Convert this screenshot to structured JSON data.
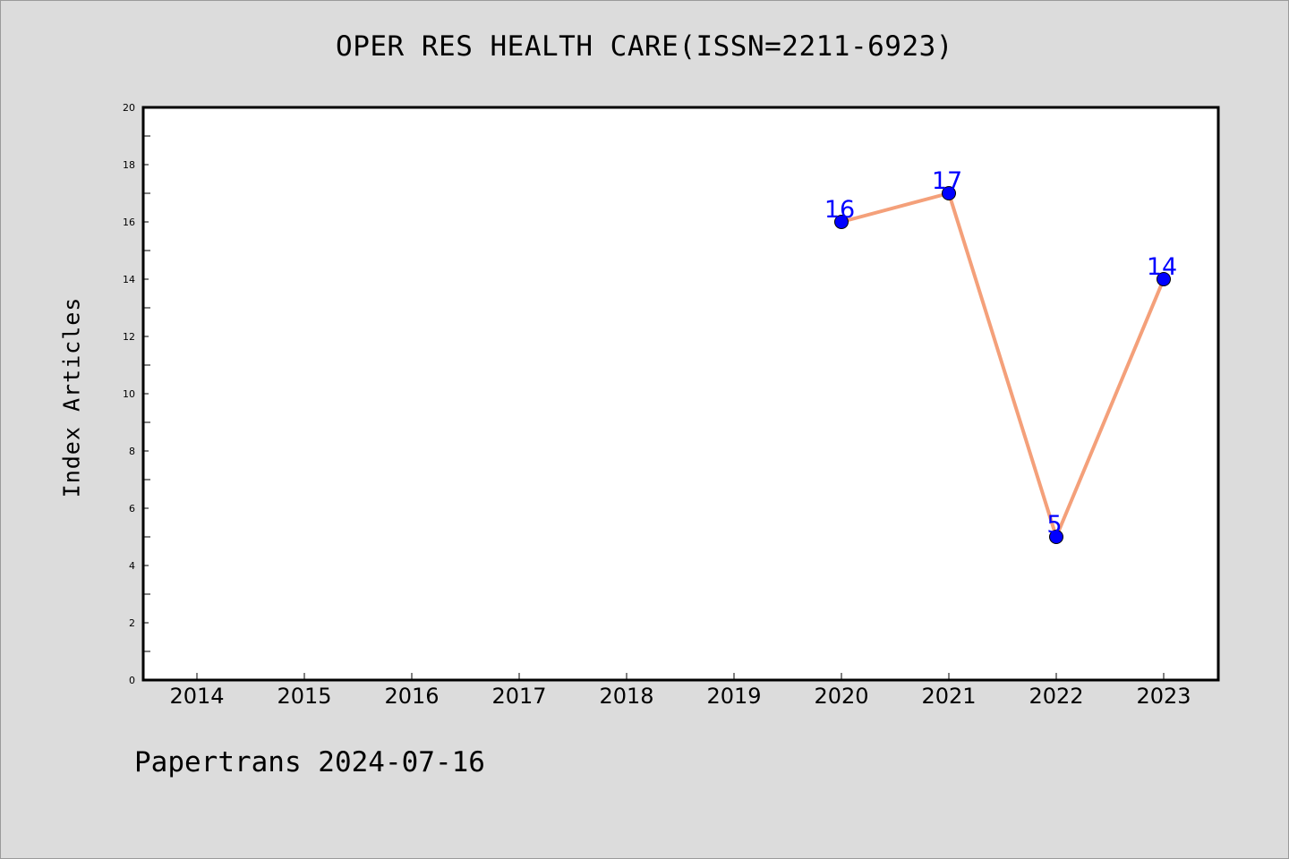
{
  "chart_data": {
    "type": "line",
    "title": "OPER RES HEALTH CARE(ISSN=2211-6923)",
    "xlabel": "",
    "ylabel": "Index Articles",
    "categories": [
      "2014",
      "2015",
      "2016",
      "2017",
      "2018",
      "2019",
      "2020",
      "2021",
      "2022",
      "2023"
    ],
    "series": [
      {
        "x": [
          "2020",
          "2021",
          "2022",
          "2023"
        ],
        "values": [
          16,
          17,
          5,
          14
        ],
        "line_color": "#f4a07a",
        "marker_color": "#0000ff"
      }
    ],
    "ylim": [
      0,
      20
    ],
    "yticks": [
      0,
      2,
      4,
      6,
      8,
      10,
      12,
      14,
      16,
      18,
      20
    ],
    "grid": false,
    "legend": "none",
    "plot_background": "#ffffff",
    "figure_background": "#dcdcdc",
    "label_color": "#0000ff"
  },
  "footer": {
    "credit": "Papertrans 2024-07-16"
  }
}
